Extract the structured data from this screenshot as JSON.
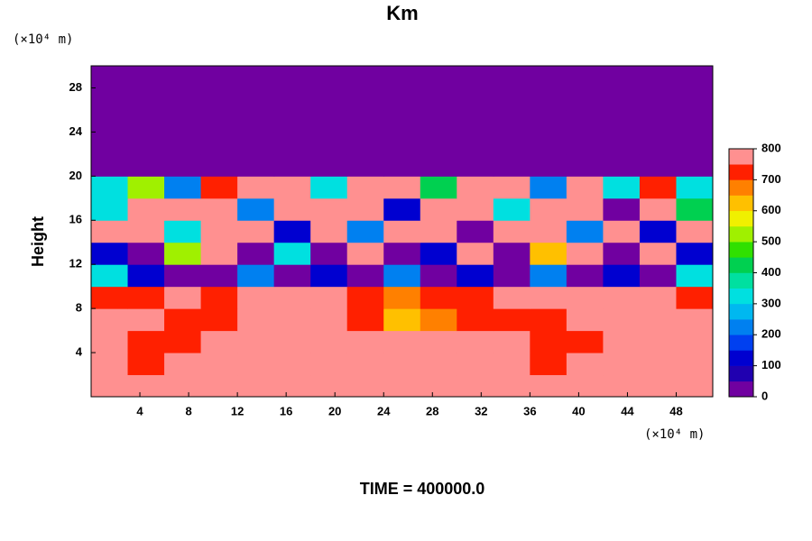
{
  "chart_data": {
    "type": "heatmap",
    "title": "Km",
    "y_unit": "(×10⁴ m)",
    "x_unit": "(×10⁴ m)",
    "ylabel": "Height",
    "footer": "TIME = 400000.0",
    "xlim": [
      0,
      51
    ],
    "ylim": [
      0,
      30
    ],
    "xticks": [
      4,
      8,
      12,
      16,
      20,
      24,
      28,
      32,
      36,
      40,
      44,
      48
    ],
    "yticks": [
      4,
      8,
      12,
      16,
      20,
      24,
      28
    ],
    "clim": [
      0,
      800
    ],
    "cticks": [
      0,
      100,
      200,
      300,
      400,
      500,
      600,
      700,
      800
    ],
    "colorscale": [
      "#7000a0",
      "#2000b0",
      "#0000d0",
      "#0040f0",
      "#0080f0",
      "#00b8f0",
      "#00e0e0",
      "#00e0a0",
      "#00d050",
      "#30e000",
      "#a0f000",
      "#f0f000",
      "#ffc000",
      "#ff8000",
      "#ff2000",
      "#ff9090"
    ],
    "z": [
      [
        800,
        800,
        800,
        800,
        800,
        800,
        800,
        750,
        800,
        800,
        800,
        800,
        800,
        800,
        800,
        800,
        800
      ],
      [
        800,
        700,
        750,
        800,
        800,
        800,
        800,
        800,
        800,
        800,
        800,
        800,
        700,
        800,
        800,
        800,
        800
      ],
      [
        750,
        700,
        700,
        750,
        800,
        800,
        800,
        800,
        800,
        800,
        750,
        800,
        700,
        700,
        800,
        800,
        800
      ],
      [
        800,
        750,
        700,
        700,
        800,
        800,
        800,
        700,
        600,
        650,
        700,
        700,
        700,
        750,
        800,
        800,
        800
      ],
      [
        700,
        700,
        800,
        700,
        750,
        800,
        750,
        700,
        650,
        700,
        700,
        750,
        800,
        800,
        800,
        750,
        700
      ],
      [
        300,
        100,
        0,
        0,
        200,
        0,
        100,
        0,
        200,
        0,
        100,
        0,
        200,
        0,
        100,
        0,
        300
      ],
      [
        100,
        0,
        500,
        800,
        0,
        300,
        0,
        800,
        0,
        100,
        800,
        0,
        600,
        800,
        0,
        800,
        100
      ],
      [
        800,
        800,
        300,
        800,
        800,
        100,
        800,
        200,
        800,
        800,
        0,
        800,
        800,
        200,
        800,
        100,
        800
      ],
      [
        300,
        800,
        800,
        800,
        200,
        800,
        800,
        800,
        100,
        800,
        800,
        300,
        800,
        800,
        0,
        800,
        400
      ],
      [
        300,
        500,
        200,
        700,
        800,
        800,
        300,
        800,
        800,
        400,
        800,
        800,
        200,
        800,
        300,
        700,
        300
      ],
      [
        0,
        0,
        0,
        0,
        0,
        0,
        0,
        0,
        0,
        0,
        0,
        0,
        0,
        0,
        0,
        0,
        0
      ],
      [
        0,
        0,
        0,
        0,
        0,
        0,
        0,
        0,
        0,
        0,
        0,
        0,
        0,
        0,
        0,
        0,
        0
      ],
      [
        0,
        0,
        0,
        0,
        0,
        0,
        0,
        0,
        0,
        0,
        0,
        0,
        0,
        0,
        0,
        0,
        0
      ],
      [
        0,
        0,
        0,
        0,
        0,
        0,
        0,
        0,
        0,
        0,
        0,
        0,
        0,
        0,
        0,
        0,
        0
      ],
      [
        0,
        0,
        0,
        0,
        0,
        0,
        0,
        0,
        0,
        0,
        0,
        0,
        0,
        0,
        0,
        0,
        0
      ]
    ]
  }
}
